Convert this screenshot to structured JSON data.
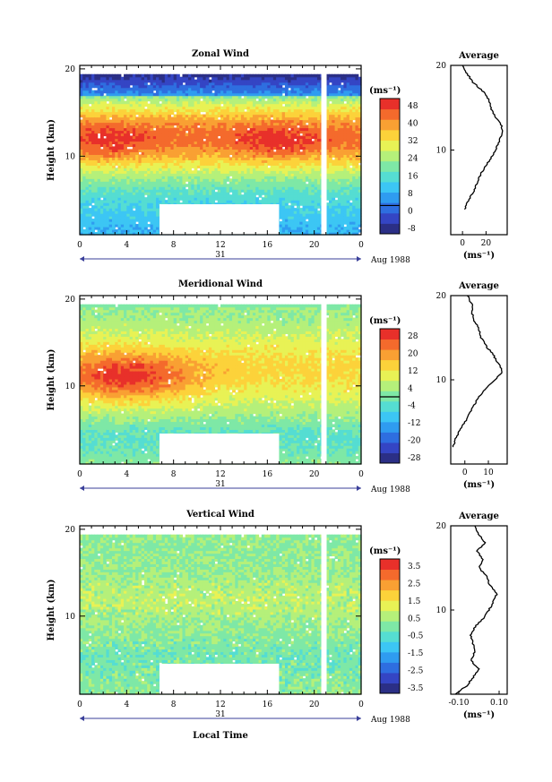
{
  "chart_data": [
    {
      "type": "heatmap",
      "title": "Zonal Wind",
      "ylabel": "Height (km)",
      "xticks": [
        "0",
        "4",
        "8",
        "12",
        "16",
        "20",
        "0"
      ],
      "yticks": [
        "20",
        "10"
      ],
      "day_label": "31",
      "date_label": "Aug 1988",
      "xlabel": "",
      "unit": "(ms⁻¹)",
      "colorbar_ticks": [
        "48",
        "40",
        "32",
        "24",
        "16",
        "8",
        "0",
        "-8"
      ],
      "vmin": -12,
      "vmax": 52,
      "avg": {
        "title": "Average",
        "xticks": [
          "0",
          "20"
        ],
        "xlabel": "(ms⁻¹)",
        "xlim": [
          -10,
          38
        ],
        "profile": [
          [
            2,
            3
          ],
          [
            5,
            4
          ],
          [
            9,
            5
          ],
          [
            12,
            6
          ],
          [
            15,
            7
          ],
          [
            19,
            8
          ],
          [
            24,
            9
          ],
          [
            28,
            10
          ],
          [
            31,
            11
          ],
          [
            34,
            12
          ],
          [
            33,
            13
          ],
          [
            28,
            14
          ],
          [
            24,
            15
          ],
          [
            22,
            16
          ],
          [
            17,
            17
          ],
          [
            9,
            18
          ],
          [
            4,
            19
          ],
          [
            0,
            20
          ]
        ]
      }
    },
    {
      "type": "heatmap",
      "title": "Meridional Wind",
      "ylabel": "Height (km)",
      "xticks": [
        "0",
        "4",
        "8",
        "12",
        "16",
        "20",
        "0"
      ],
      "yticks": [
        "20",
        "10"
      ],
      "day_label": "31",
      "date_label": "Aug 1988",
      "xlabel": "",
      "unit": "(ms⁻¹)",
      "colorbar_ticks": [
        "28",
        "20",
        "12",
        "4",
        "-4",
        "-12",
        "-20",
        "-28"
      ],
      "vmin": -32,
      "vmax": 32,
      "avg": {
        "title": "Average",
        "xticks": [
          "0",
          "10"
        ],
        "xlabel": "(ms⁻¹)",
        "xlim": [
          -6,
          18
        ],
        "profile": [
          [
            -5,
            2
          ],
          [
            -4,
            3
          ],
          [
            -2,
            4
          ],
          [
            0,
            5
          ],
          [
            2,
            6
          ],
          [
            4,
            7
          ],
          [
            6,
            8
          ],
          [
            9,
            9
          ],
          [
            13,
            10
          ],
          [
            16,
            11
          ],
          [
            14,
            12
          ],
          [
            12,
            13
          ],
          [
            9,
            14
          ],
          [
            7,
            15
          ],
          [
            6,
            16
          ],
          [
            4,
            17
          ],
          [
            3,
            18
          ],
          [
            3,
            19
          ],
          [
            1,
            20
          ]
        ]
      }
    },
    {
      "type": "heatmap",
      "title": "Vertical Wind",
      "ylabel": "Height (km)",
      "xticks": [
        "0",
        "4",
        "8",
        "12",
        "16",
        "20",
        "0"
      ],
      "yticks": [
        "20",
        "10"
      ],
      "day_label": "31",
      "date_label": "Aug 1988",
      "xlabel": "Local Time",
      "unit": "(ms⁻¹)",
      "colorbar_ticks": [
        "3.5",
        "2.5",
        "1.5",
        "0.5",
        "-0.5",
        "-1.5",
        "-2.5",
        "-3.5"
      ],
      "vmin": -4,
      "vmax": 4,
      "avg": {
        "title": "Average",
        "xticks": [
          "-0.10",
          "0.10"
        ],
        "xlabel": "(ms⁻¹)",
        "xlim": [
          -0.14,
          0.14
        ],
        "profile": [
          [
            -0.12,
            0
          ],
          [
            -0.06,
            1
          ],
          [
            -0.03,
            2
          ],
          [
            0.0,
            3
          ],
          [
            -0.04,
            4
          ],
          [
            -0.02,
            5
          ],
          [
            -0.03,
            6
          ],
          [
            -0.04,
            7
          ],
          [
            -0.02,
            8
          ],
          [
            0.02,
            9
          ],
          [
            0.05,
            10
          ],
          [
            0.07,
            11
          ],
          [
            0.09,
            12
          ],
          [
            0.05,
            13
          ],
          [
            0.04,
            14
          ],
          [
            0.0,
            15
          ],
          [
            0.02,
            16
          ],
          [
            -0.01,
            17
          ],
          [
            0.03,
            18
          ],
          [
            0.0,
            19
          ],
          [
            -0.02,
            20
          ]
        ]
      }
    }
  ]
}
